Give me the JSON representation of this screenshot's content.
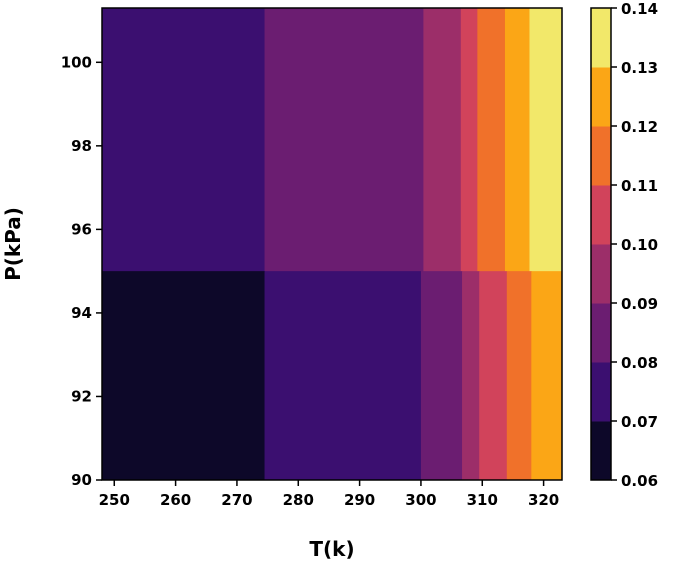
{
  "chart_data": {
    "type": "heatmap",
    "subtype": "filled-contour",
    "title": "",
    "xlabel": "T(k)",
    "ylabel": "P(kPa)",
    "xlim": [
      248,
      323
    ],
    "ylim": [
      90,
      101.3
    ],
    "x_ticks": [
      "250",
      "260",
      "270",
      "280",
      "290",
      "300",
      "310",
      "320"
    ],
    "y_ticks": [
      "90",
      "92",
      "94",
      "96",
      "98",
      "100"
    ],
    "colorbar": {
      "levels": [
        0.06,
        0.07,
        0.08,
        0.09,
        0.1,
        0.11,
        0.12,
        0.13,
        0.14
      ],
      "tick_labels": [
        "0.06",
        "0.07",
        "0.08",
        "0.09",
        "0.10",
        "0.11",
        "0.12",
        "0.13",
        "0.14"
      ],
      "colors": [
        "#0d0829",
        "#3b0f70",
        "#6b1d71",
        "#9c2e69",
        "#d1435b",
        "#f0712a",
        "#fba616",
        "#f2e86a"
      ]
    },
    "pressure_boundary_kPa": 95,
    "regions": {
      "low_pressure": [
        {
          "T_start": 248,
          "T_end": 274.5,
          "level": 0
        },
        {
          "T_start": 274.5,
          "T_end": 300,
          "level": 1
        },
        {
          "T_start": 300,
          "T_end": 306.7,
          "level": 2
        },
        {
          "T_start": 306.7,
          "T_end": 309.5,
          "level": 3
        },
        {
          "T_start": 309.5,
          "T_end": 314,
          "level": 4
        },
        {
          "T_start": 314,
          "T_end": 318,
          "level": 5
        },
        {
          "T_start": 318,
          "T_end": 323,
          "level": 6
        }
      ],
      "high_pressure": [
        {
          "T_start": 248,
          "T_end": 274.5,
          "level": 1
        },
        {
          "T_start": 274.5,
          "T_end": 300.4,
          "level": 2
        },
        {
          "T_start": 300.4,
          "T_end": 306.5,
          "level": 3
        },
        {
          "T_start": 306.5,
          "T_end": 309.2,
          "level": 4
        },
        {
          "T_start": 309.2,
          "T_end": 313.7,
          "level": 5
        },
        {
          "T_start": 313.7,
          "T_end": 317.7,
          "level": 6
        },
        {
          "T_start": 317.7,
          "T_end": 323,
          "level": 7
        }
      ]
    }
  }
}
